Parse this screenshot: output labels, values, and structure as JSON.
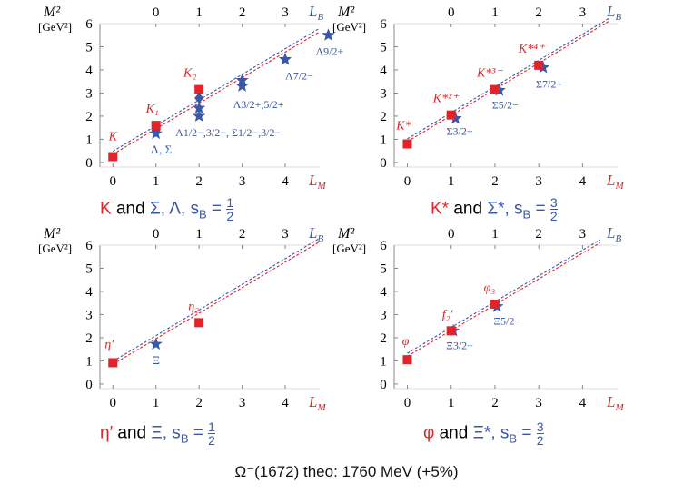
{
  "colors": {
    "meson": "#e0242a",
    "baryon": "#3a57a8",
    "axis": "#000000",
    "tick": "#888888"
  },
  "footer": "Ω⁻(1672) theo: 1760 MeV (+5%)",
  "chart_data": [
    {
      "type": "scatter",
      "title": "K and Σ,Λ, sB = 1/2",
      "ylabel": "M²",
      "yunit": "[GeV²]",
      "xlabel_bottom": "L_M",
      "xlabel_top": "L_B",
      "xlim": [
        -0.3,
        4.8
      ],
      "ylim": [
        -0.2,
        6
      ],
      "yticks": [
        0,
        1,
        2,
        3,
        4,
        5,
        6
      ],
      "bottom_ticks": [
        0,
        1,
        2,
        3,
        4
      ],
      "top_ticks": [
        {
          "label": "0",
          "x": 1
        },
        {
          "label": "1",
          "x": 2
        },
        {
          "label": "2",
          "x": 3
        },
        {
          "label": "3",
          "x": 4
        }
      ],
      "lines": [
        {
          "color": "meson",
          "x0": 0,
          "y0": 0.35,
          "x1": 4.8,
          "y1": 5.65
        },
        {
          "color": "baryon",
          "x0": 0,
          "y0": 0.48,
          "x1": 4.8,
          "y1": 5.8
        }
      ],
      "mesons": [
        {
          "x": 0,
          "y": 0.25,
          "label": "K"
        },
        {
          "x": 1,
          "y": 1.6,
          "label": "K₁"
        },
        {
          "x": 2,
          "y": 3.15,
          "label": "K₂"
        }
      ],
      "baryons": [
        {
          "x": 1,
          "y": 1.4,
          "marker": "diamond"
        },
        {
          "x": 1,
          "y": 1.25,
          "marker": "star"
        },
        {
          "x": 2,
          "y": 2.78,
          "marker": "diamond"
        },
        {
          "x": 2,
          "y": 2.35,
          "marker": "star"
        },
        {
          "x": 2,
          "y": 2.0,
          "marker": "star"
        },
        {
          "x": 3,
          "y": 3.55,
          "marker": "star"
        },
        {
          "x": 3,
          "y": 3.3,
          "marker": "star"
        },
        {
          "x": 4,
          "y": 4.45,
          "marker": "star"
        },
        {
          "x": 5,
          "y": 5.5,
          "marker": "star"
        }
      ],
      "baryon_labels": [
        "Λ, Σ",
        "Λ^{1/2−,3/2−}, Σ^{1/2−,3/2−}",
        "Λ^{3/2+,5/2+}",
        "Λ^{7/2−}",
        "Λ^{9/2+}"
      ],
      "caption": {
        "meson": "K",
        "and": "and",
        "baryon": "Σ, Λ, s",
        "sub": "B",
        "eq": "=",
        "num": "1",
        "den": "2"
      }
    },
    {
      "type": "scatter",
      "title": "K* and Σ*, sB = 3/2",
      "ylabel": "M²",
      "yunit": "[GeV²]",
      "xlabel_bottom": "L_M",
      "xlabel_top": "L_B",
      "xlim": [
        -0.3,
        4.8
      ],
      "ylim": [
        -0.2,
        6
      ],
      "yticks": [
        0,
        1,
        2,
        3,
        4,
        5,
        6
      ],
      "bottom_ticks": [
        0,
        1,
        2,
        3,
        4
      ],
      "top_ticks": [
        {
          "label": "0",
          "x": 1
        },
        {
          "label": "1",
          "x": 2
        },
        {
          "label": "2",
          "x": 3
        },
        {
          "label": "3",
          "x": 4
        }
      ],
      "lines": [
        {
          "color": "meson",
          "x0": 0,
          "y0": 0.9,
          "x1": 4.6,
          "y1": 6.1
        },
        {
          "color": "baryon",
          "x0": 0,
          "y0": 1.02,
          "x1": 4.6,
          "y1": 6.22
        }
      ],
      "mesons": [
        {
          "x": 0,
          "y": 0.8,
          "label": "K*"
        },
        {
          "x": 1,
          "y": 2.05,
          "label": "K*²⁺"
        },
        {
          "x": 2,
          "y": 3.15,
          "label": "K*³⁻"
        },
        {
          "x": 3,
          "y": 4.2,
          "label": "K*⁴⁺"
        }
      ],
      "baryons": [
        {
          "x": 1.1,
          "y": 1.9,
          "marker": "star"
        },
        {
          "x": 2.1,
          "y": 3.12,
          "marker": "star"
        },
        {
          "x": 3.1,
          "y": 4.1,
          "marker": "star"
        }
      ],
      "baryon_labels": [
        "Σ^{3/2+}",
        "Σ^{5/2−}",
        "Σ^{7/2+}"
      ],
      "caption": {
        "meson": "K*",
        "and": "and",
        "baryon": "Σ*, s",
        "sub": "B",
        "eq": "=",
        "num": "3",
        "den": "2"
      }
    },
    {
      "type": "scatter",
      "title": "η′ and Ξ, sB = 1/2",
      "ylabel": "M²",
      "yunit": "[GeV²]",
      "xlabel_bottom": "L_M",
      "xlabel_top": "L_B",
      "xlim": [
        -0.3,
        4.8
      ],
      "ylim": [
        -0.2,
        6
      ],
      "yticks": [
        0,
        1,
        2,
        3,
        4,
        5,
        6
      ],
      "bottom_ticks": [
        0,
        1,
        2,
        3,
        4
      ],
      "top_ticks": [
        {
          "label": "0",
          "x": 1
        },
        {
          "label": "1",
          "x": 2
        },
        {
          "label": "2",
          "x": 3
        },
        {
          "label": "3",
          "x": 4
        }
      ],
      "lines": [
        {
          "color": "meson",
          "x0": 0,
          "y0": 0.85,
          "x1": 4.8,
          "y1": 6.15
        },
        {
          "color": "baryon",
          "x0": 0,
          "y0": 0.98,
          "x1": 4.8,
          "y1": 6.3
        }
      ],
      "mesons": [
        {
          "x": 0,
          "y": 0.92,
          "label": "η′"
        },
        {
          "x": 2,
          "y": 2.65,
          "label": "η₂"
        }
      ],
      "baryons": [
        {
          "x": 1,
          "y": 1.72,
          "marker": "star"
        }
      ],
      "baryon_labels": [
        "Ξ"
      ],
      "caption": {
        "meson": "η′",
        "and": "and",
        "baryon": "Ξ, s",
        "sub": "B",
        "eq": "=",
        "num": "1",
        "den": "2"
      }
    },
    {
      "type": "scatter",
      "title": "φ and Ξ*, sB = 3/2",
      "ylabel": "M²",
      "yunit": "[GeV²]",
      "xlabel_bottom": "L_M",
      "xlabel_top": "L_B",
      "xlim": [
        -0.3,
        4.8
      ],
      "ylim": [
        -0.2,
        6
      ],
      "yticks": [
        0,
        1,
        2,
        3,
        4,
        5,
        6
      ],
      "bottom_ticks": [
        0,
        1,
        2,
        3,
        4
      ],
      "top_ticks": [
        {
          "label": "0",
          "x": 1
        },
        {
          "label": "1",
          "x": 2
        },
        {
          "label": "2",
          "x": 3
        },
        {
          "label": "3",
          "x": 4
        }
      ],
      "lines": [
        {
          "color": "meson",
          "x0": 0,
          "y0": 1.2,
          "x1": 4.4,
          "y1": 6.1
        },
        {
          "color": "baryon",
          "x0": 0,
          "y0": 1.33,
          "x1": 4.4,
          "y1": 6.23
        }
      ],
      "mesons": [
        {
          "x": 0,
          "y": 1.05,
          "label": "φ"
        },
        {
          "x": 1,
          "y": 2.3,
          "label": "f₂′"
        },
        {
          "x": 2,
          "y": 3.45,
          "label": "φ₃"
        }
      ],
      "baryons": [
        {
          "x": 1.05,
          "y": 2.3,
          "marker": "star"
        },
        {
          "x": 2.05,
          "y": 3.35,
          "marker": "star"
        }
      ],
      "baryon_labels": [
        "Ξ^{3/2+}",
        "Ξ^{5/2−}"
      ],
      "caption": {
        "meson": "φ",
        "and": "and",
        "baryon": "Ξ*, s",
        "sub": "B",
        "eq": "=",
        "num": "3",
        "den": "2"
      }
    }
  ]
}
